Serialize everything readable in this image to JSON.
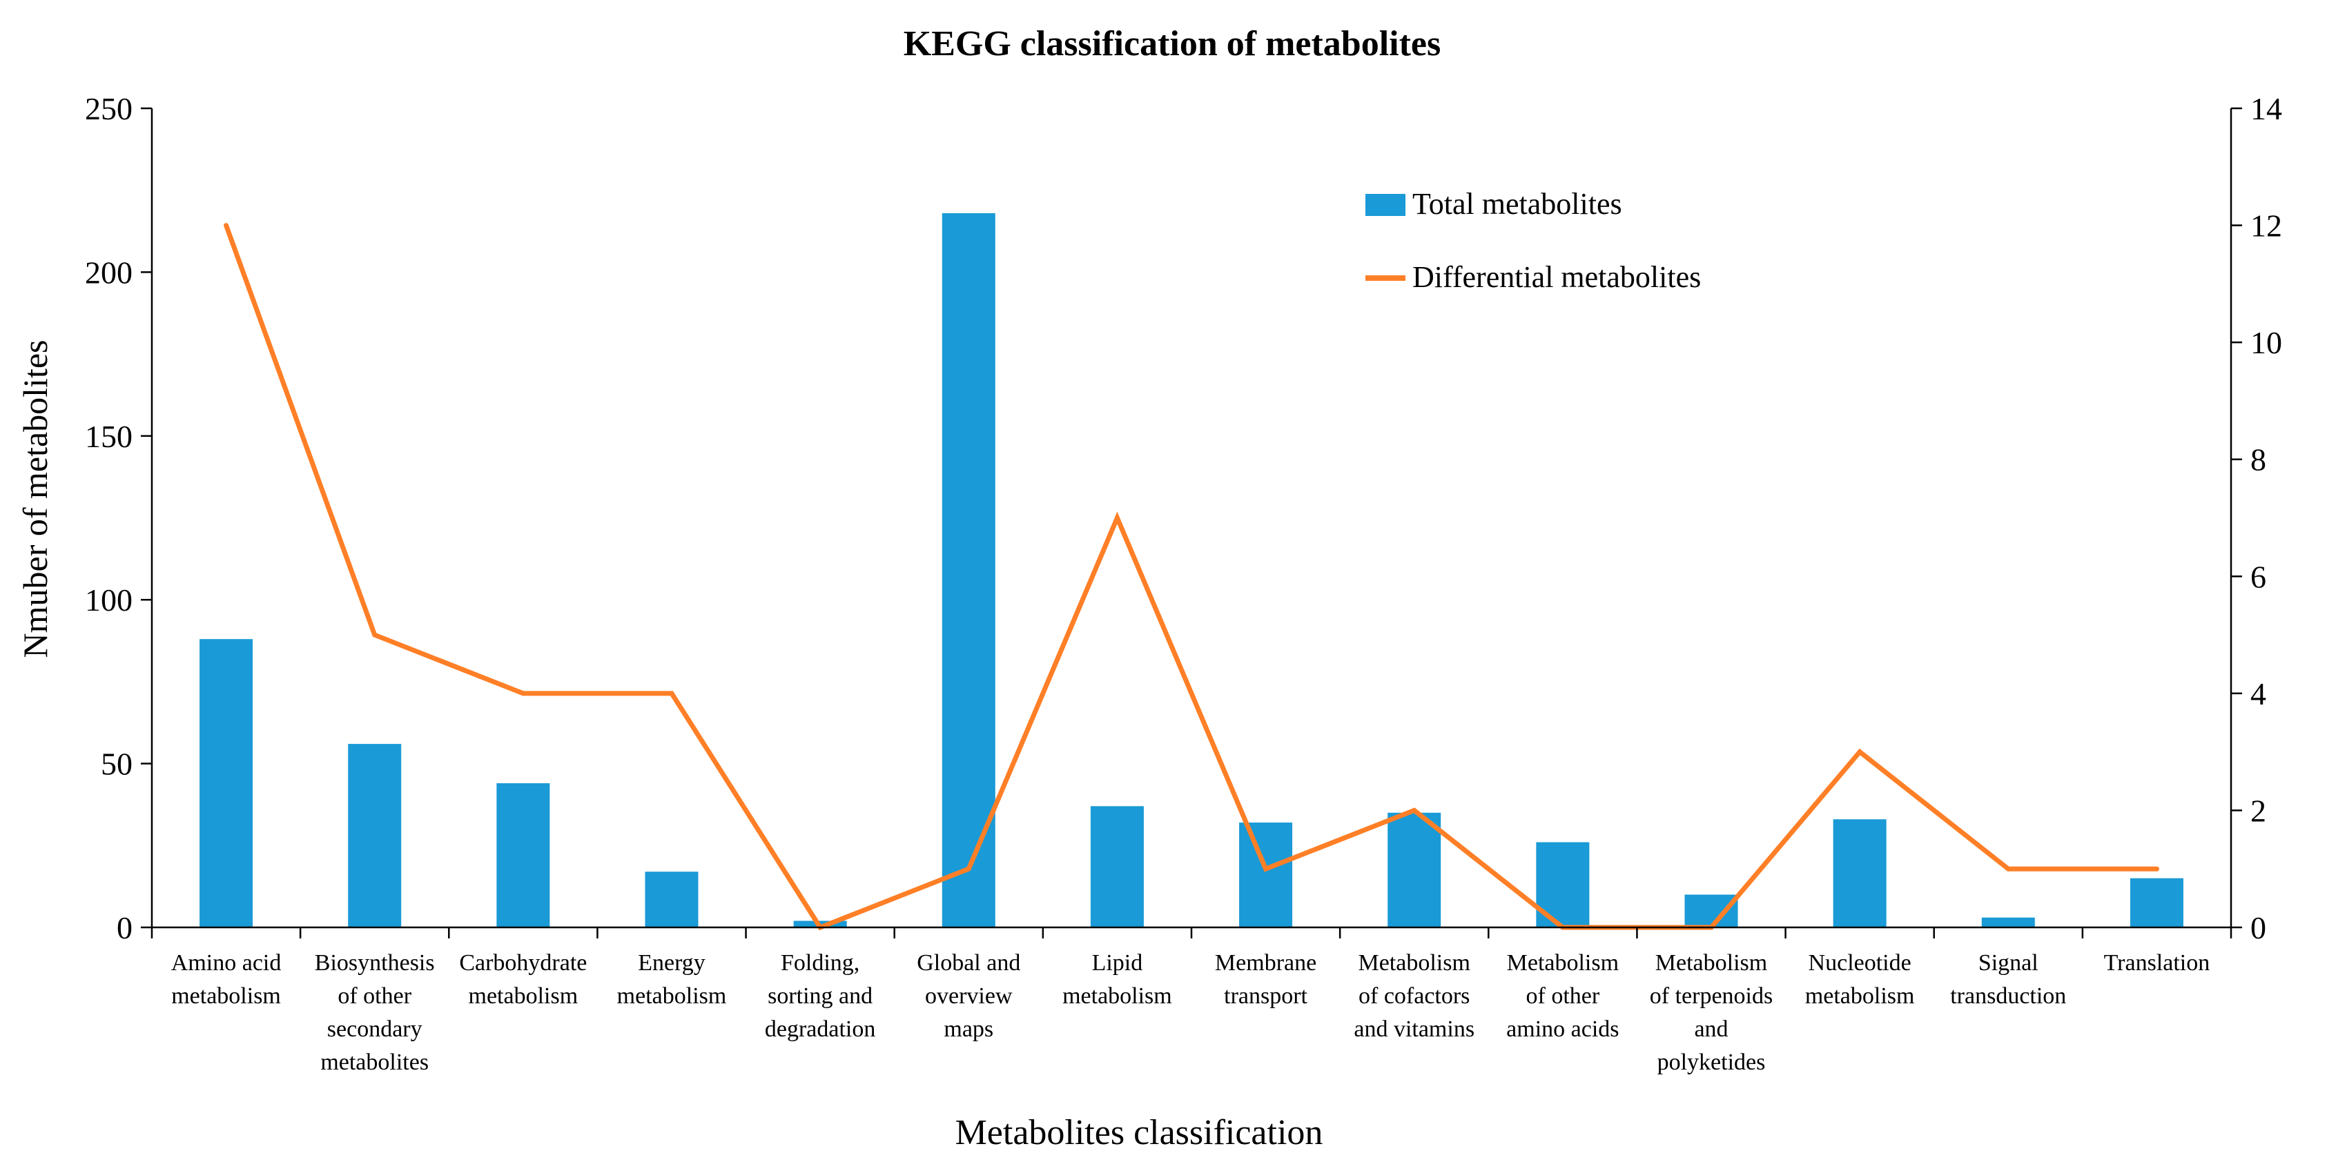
{
  "chart_data": {
    "type": "bar",
    "title": "KEGG classification of metabolites",
    "xlabel": "Metabolites classification",
    "ylabel": "Nmuber of metabolites",
    "y2label": "",
    "ylim": [
      0,
      250
    ],
    "y2lim": [
      0,
      14
    ],
    "yticks": [
      "0",
      "50",
      "100",
      "150",
      "200",
      "250"
    ],
    "y2ticks": [
      "0",
      "2",
      "4",
      "6",
      "8",
      "10",
      "12",
      "14"
    ],
    "grid": false,
    "legend_position": "top-center",
    "categories": [
      [
        "Amino acid",
        "metabolism"
      ],
      [
        "Biosynthesis",
        "of other",
        "secondary",
        "metabolites"
      ],
      [
        "Carbohydrate",
        "metabolism"
      ],
      [
        "Energy",
        "metabolism"
      ],
      [
        "Folding,",
        "sorting and",
        "degradation"
      ],
      [
        "Global and",
        "overview",
        "maps"
      ],
      [
        "Lipid",
        "metabolism"
      ],
      [
        "Membrane",
        "transport"
      ],
      [
        "Metabolism",
        "of cofactors",
        "and vitamins"
      ],
      [
        "Metabolism",
        "of other",
        "amino acids"
      ],
      [
        "Metabolism",
        "of terpenoids",
        "and",
        "polyketides"
      ],
      [
        "Nucleotide",
        "metabolism"
      ],
      [
        "Signal",
        "transduction"
      ],
      [
        "Translation"
      ]
    ],
    "series": [
      {
        "name": "Total metabolites",
        "type": "bar",
        "axis": "left",
        "color": "#1a9ad6",
        "values": [
          88,
          56,
          44,
          17,
          2,
          218,
          37,
          32,
          35,
          26,
          10,
          33,
          3,
          15
        ]
      },
      {
        "name": "Differential metabolites",
        "type": "line",
        "axis": "right",
        "color": "#ff7f27",
        "values": [
          12,
          5,
          4,
          4,
          0,
          1,
          7,
          1,
          2,
          0,
          0,
          3,
          1,
          1
        ]
      }
    ]
  }
}
